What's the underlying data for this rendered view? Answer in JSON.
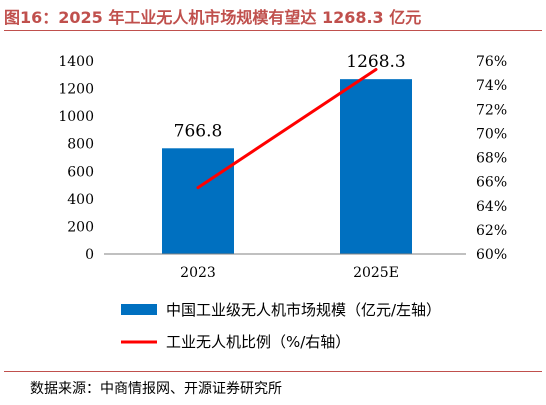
{
  "title": "图16：2025 年工业无人机市场规模有望达 1268.3 亿元",
  "source": "数据来源：中商情报网、开源证券研究所",
  "chart_data": {
    "type": "bar",
    "categories": [
      "2023",
      "2025E"
    ],
    "series": [
      {
        "name": "中国工业级无人机市场规模（亿元/左轴）",
        "type": "bar",
        "axis": "left",
        "values": [
          766.8,
          1268.3
        ],
        "color": "#0070c0"
      },
      {
        "name": "工业无人机比例（%/右轴）",
        "type": "line",
        "axis": "right",
        "values": [
          65.5,
          75.3
        ],
        "color": "#ff0000"
      }
    ],
    "data_labels": [
      "766.8",
      "1268.3"
    ],
    "y_left": {
      "min": 0,
      "max": 1400,
      "step": 200,
      "ticks": [
        "0",
        "200",
        "400",
        "600",
        "800",
        "1000",
        "1200",
        "1400"
      ]
    },
    "y_right": {
      "min": 60,
      "max": 76,
      "step": 2,
      "ticks": [
        "60%",
        "62%",
        "64%",
        "66%",
        "68%",
        "70%",
        "72%",
        "74%",
        "76%"
      ]
    },
    "grid": false,
    "legend_position": "bottom"
  }
}
